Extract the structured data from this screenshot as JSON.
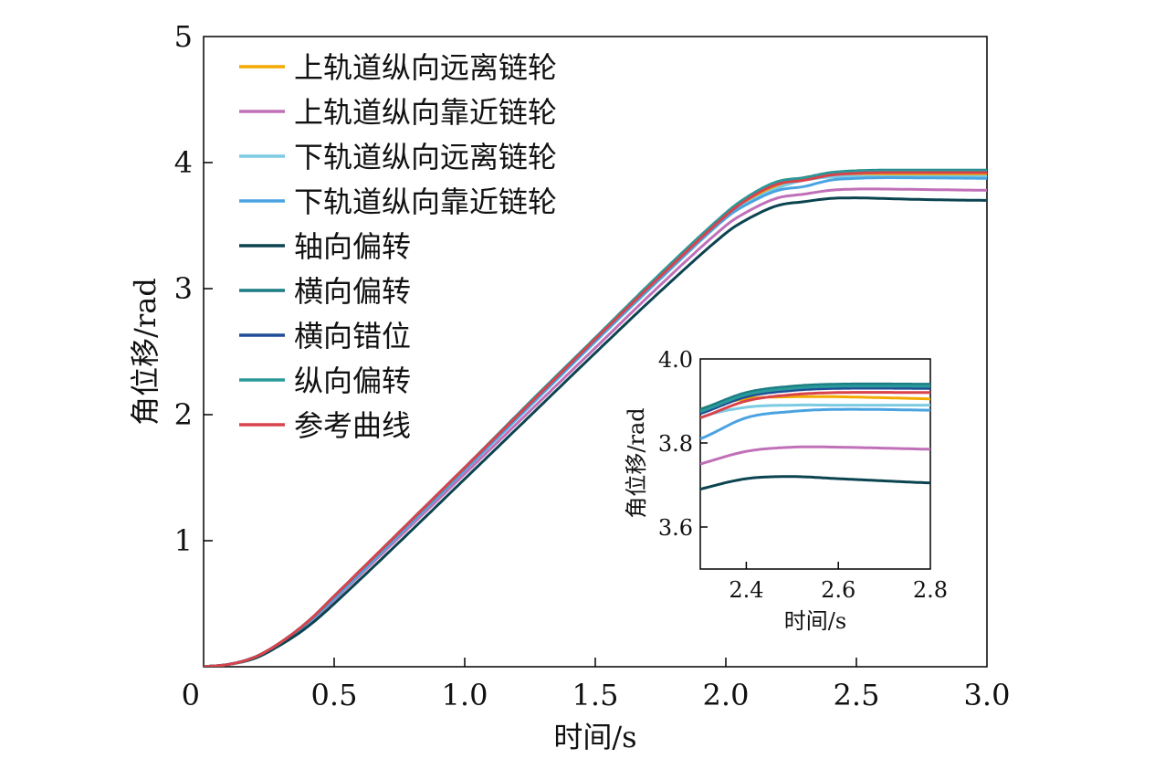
{
  "chart_data": [
    {
      "type": "line",
      "xlabel": "时间/s",
      "ylabel": "角位移/rad",
      "xlim": [
        0,
        3.0
      ],
      "ylim": [
        0,
        5
      ],
      "xticks": [
        "0",
        "0.5",
        "1.0",
        "1.5",
        "2.0",
        "2.5",
        "3.0"
      ],
      "yticks": [
        "1",
        "2",
        "3",
        "4",
        "5"
      ],
      "legend_placement": "top-left",
      "grid": false,
      "series": [
        {
          "name": "上轨道纵向远离链轮",
          "color": "#f2a900",
          "x": [
            0,
            0.1,
            0.2,
            0.3,
            0.4,
            0.5,
            0.75,
            1.0,
            1.25,
            1.5,
            1.75,
            2.0,
            2.1,
            2.2,
            2.3,
            2.4,
            2.5,
            2.6,
            2.8,
            3.0
          ],
          "y": [
            0,
            0.02,
            0.08,
            0.19,
            0.35,
            0.55,
            1.06,
            1.57,
            2.08,
            2.59,
            3.1,
            3.58,
            3.72,
            3.82,
            3.88,
            3.905,
            3.91,
            3.91,
            3.905,
            3.9
          ]
        },
        {
          "name": "上轨道纵向靠近链轮",
          "color": "#c070b8",
          "x": [
            0,
            0.1,
            0.2,
            0.3,
            0.4,
            0.5,
            0.75,
            1.0,
            1.25,
            1.5,
            1.75,
            2.0,
            2.1,
            2.2,
            2.3,
            2.4,
            2.5,
            2.6,
            2.8,
            3.0
          ],
          "y": [
            0,
            0.02,
            0.08,
            0.19,
            0.34,
            0.53,
            1.03,
            1.53,
            2.03,
            2.53,
            3.03,
            3.5,
            3.63,
            3.72,
            3.75,
            3.78,
            3.79,
            3.79,
            3.785,
            3.78
          ]
        },
        {
          "name": "下轨道纵向远离链轮",
          "color": "#7ccbe3",
          "x": [
            0,
            0.1,
            0.2,
            0.3,
            0.4,
            0.5,
            0.75,
            1.0,
            1.25,
            1.5,
            1.75,
            2.0,
            2.1,
            2.2,
            2.3,
            2.4,
            2.5,
            2.6,
            2.8,
            3.0
          ],
          "y": [
            0,
            0.02,
            0.08,
            0.19,
            0.35,
            0.54,
            1.05,
            1.56,
            2.07,
            2.58,
            3.09,
            3.57,
            3.7,
            3.8,
            3.86,
            3.885,
            3.89,
            3.89,
            3.89,
            3.89
          ]
        },
        {
          "name": "下轨道纵向靠近链轮",
          "color": "#4aa3e0",
          "x": [
            0,
            0.1,
            0.2,
            0.3,
            0.4,
            0.5,
            0.75,
            1.0,
            1.25,
            1.5,
            1.75,
            2.0,
            2.1,
            2.2,
            2.3,
            2.4,
            2.5,
            2.6,
            2.8,
            3.0
          ],
          "y": [
            0,
            0.02,
            0.08,
            0.19,
            0.35,
            0.54,
            1.05,
            1.56,
            2.07,
            2.58,
            3.08,
            3.56,
            3.69,
            3.78,
            3.81,
            3.86,
            3.875,
            3.88,
            3.878,
            3.875
          ]
        },
        {
          "name": "轴向偏转",
          "color": "#0b4450",
          "x": [
            0,
            0.1,
            0.2,
            0.3,
            0.4,
            0.5,
            0.75,
            1.0,
            1.25,
            1.5,
            1.75,
            2.0,
            2.1,
            2.2,
            2.3,
            2.4,
            2.5,
            2.6,
            2.8,
            3.0
          ],
          "y": [
            0,
            0.02,
            0.07,
            0.18,
            0.32,
            0.5,
            0.99,
            1.49,
            1.99,
            2.49,
            2.98,
            3.44,
            3.57,
            3.66,
            3.69,
            3.715,
            3.72,
            3.715,
            3.705,
            3.7
          ]
        },
        {
          "name": "横向偏转",
          "color": "#1b7d82",
          "x": [
            0,
            0.1,
            0.2,
            0.3,
            0.4,
            0.5,
            0.75,
            1.0,
            1.25,
            1.5,
            1.75,
            2.0,
            2.1,
            2.2,
            2.3,
            2.4,
            2.5,
            2.6,
            2.8,
            3.0
          ],
          "y": [
            0,
            0.02,
            0.08,
            0.2,
            0.36,
            0.56,
            1.07,
            1.58,
            2.1,
            2.61,
            3.12,
            3.6,
            3.75,
            3.85,
            3.88,
            3.92,
            3.935,
            3.94,
            3.94,
            3.94
          ]
        },
        {
          "name": "横向错位",
          "color": "#1f4e96",
          "x": [
            0,
            0.1,
            0.2,
            0.3,
            0.4,
            0.5,
            0.75,
            1.0,
            1.25,
            1.5,
            1.75,
            2.0,
            2.1,
            2.2,
            2.3,
            2.4,
            2.5,
            2.6,
            2.8,
            3.0
          ],
          "y": [
            0,
            0.02,
            0.08,
            0.2,
            0.36,
            0.56,
            1.07,
            1.58,
            2.09,
            2.6,
            3.11,
            3.59,
            3.74,
            3.84,
            3.87,
            3.91,
            3.925,
            3.93,
            3.93,
            3.93
          ]
        },
        {
          "name": "纵向偏转",
          "color": "#2a9a9a",
          "x": [
            0,
            0.1,
            0.2,
            0.3,
            0.4,
            0.5,
            0.75,
            1.0,
            1.25,
            1.5,
            1.75,
            2.0,
            2.1,
            2.2,
            2.3,
            2.4,
            2.5,
            2.6,
            2.8,
            3.0
          ],
          "y": [
            0,
            0.02,
            0.08,
            0.2,
            0.36,
            0.56,
            1.07,
            1.58,
            2.1,
            2.61,
            3.12,
            3.6,
            3.75,
            3.85,
            3.875,
            3.915,
            3.93,
            3.935,
            3.935,
            3.935
          ]
        },
        {
          "name": "参考曲线",
          "color": "#d9434b",
          "x": [
            0,
            0.1,
            0.2,
            0.3,
            0.4,
            0.5,
            0.75,
            1.0,
            1.25,
            1.5,
            1.75,
            2.0,
            2.1,
            2.2,
            2.3,
            2.4,
            2.5,
            2.6,
            2.8,
            3.0
          ],
          "y": [
            0,
            0.02,
            0.08,
            0.2,
            0.36,
            0.56,
            1.07,
            1.58,
            2.09,
            2.6,
            3.1,
            3.58,
            3.73,
            3.83,
            3.86,
            3.9,
            3.915,
            3.92,
            3.92,
            3.92
          ]
        }
      ]
    },
    {
      "type": "line",
      "xlabel": "时间/s",
      "ylabel": "角位移/rad",
      "xlim": [
        2.3,
        2.8
      ],
      "ylim": [
        3.5,
        4.0
      ],
      "xticks": [
        "2.4",
        "2.6",
        "2.8"
      ],
      "yticks": [
        "3.6",
        "3.8",
        "4.0"
      ],
      "grid": false,
      "inset": true
    }
  ]
}
